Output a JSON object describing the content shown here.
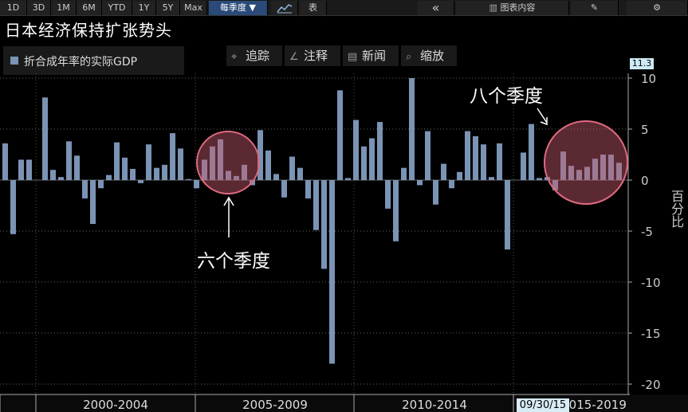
{
  "toolbar": {
    "ranges": [
      "1D",
      "3D",
      "1M",
      "6M",
      "YTD",
      "1Y",
      "5Y",
      "Max"
    ],
    "frequency": "每季度 ▼",
    "table_label": "表",
    "collapse_icon": "«",
    "chart_content_label": "图表内容",
    "edit_icon": "edit-icon",
    "settings_icon": "gear-icon"
  },
  "legend": {
    "label": "折合成年率的实际GDP",
    "color": "#7b93b4"
  },
  "tools": {
    "track": "追踪",
    "annotate": "注释",
    "news": "新闻",
    "zoom": "缩放"
  },
  "annotations": {
    "six_quarters": "六个季度",
    "eight_quarters": "八个季度"
  },
  "last_value": "11.3",
  "date_label": "09/30/15",
  "chart_data": {
    "type": "bar",
    "title": "日本经济保持扩张势头",
    "ylabel": "百分比",
    "ylim": [
      -21,
      11.3
    ],
    "yticks": [
      10,
      5,
      0,
      -5,
      -10,
      -15,
      -20
    ],
    "period_labels": [
      "2000-2004",
      "2005-2009",
      "2010-2014",
      "2015-2019"
    ],
    "series": [
      {
        "name": "折合成年率的实际GDP",
        "color": "#7b93b4",
        "values": [
          3.6,
          -5.3,
          2.0,
          2.0,
          0.0,
          8.1,
          1.0,
          0.3,
          3.8,
          2.4,
          -1.8,
          -4.3,
          -0.8,
          0.5,
          3.7,
          2.2,
          1.1,
          -0.3,
          3.5,
          1.2,
          1.5,
          4.6,
          3.1,
          0.1,
          -0.8,
          2.0,
          3.3,
          4.0,
          0.9,
          0.4,
          1.5,
          -0.5,
          4.9,
          2.9,
          0.6,
          -1.7,
          2.3,
          1.2,
          -1.8,
          -4.9,
          -8.7,
          -18.0,
          8.8,
          0.2,
          5.9,
          3.3,
          4.1,
          5.7,
          -2.8,
          -6.0,
          1.2,
          10.0,
          -0.5,
          4.8,
          -2.4,
          1.6,
          -0.8,
          0.8,
          4.8,
          4.3,
          3.5,
          0.3,
          3.6,
          -6.8,
          0.0,
          2.7,
          5.5,
          0.2,
          0.3,
          -1.0,
          2.8,
          1.4,
          1.0,
          1.3,
          2.1,
          2.5,
          2.5,
          1.7
        ]
      }
    ],
    "grid": true
  }
}
